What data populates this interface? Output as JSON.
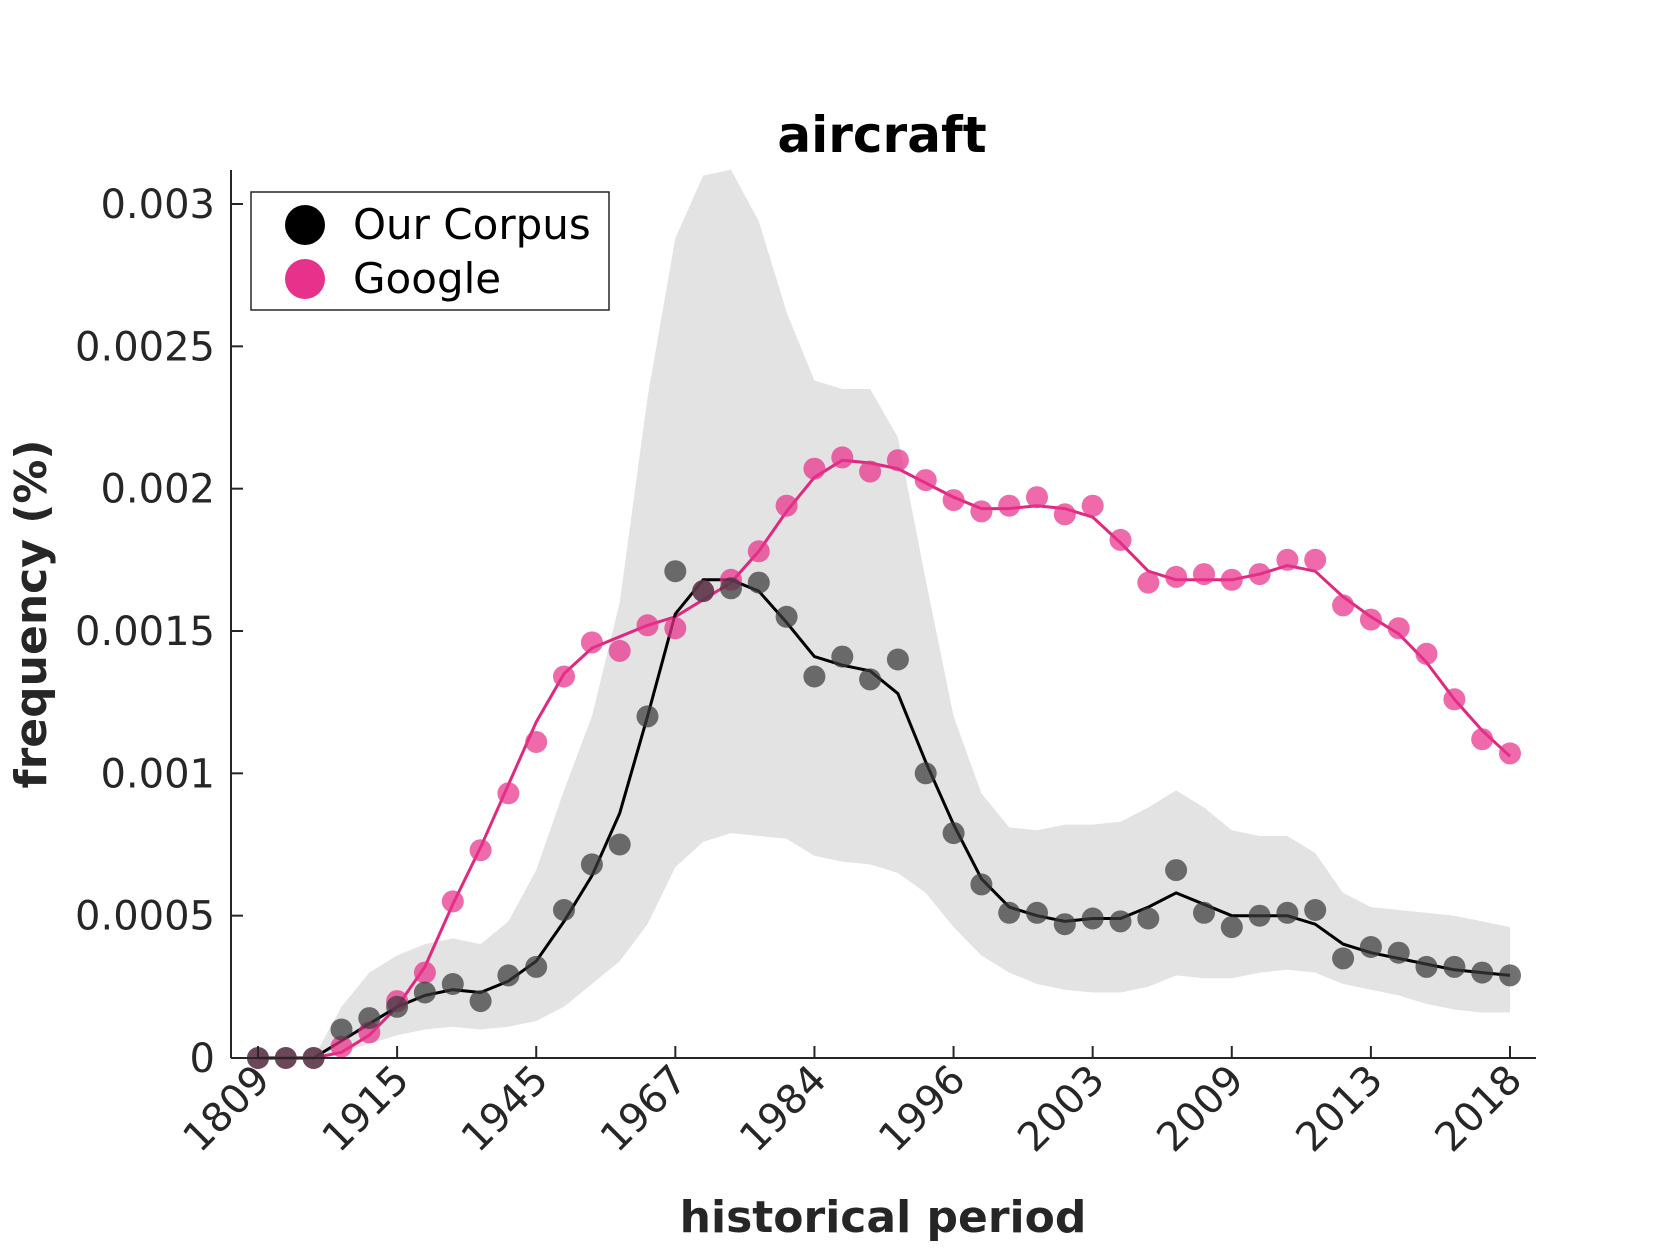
{
  "chart_data": {
    "type": "line",
    "title": "aircraft",
    "xlabel": "historical period",
    "ylabel": "frequency (%)",
    "ylim": [
      0,
      0.0031
    ],
    "yticks": [
      "0",
      "0.0005",
      "0.001",
      "0.0015",
      "0.002",
      "0.0025",
      "0.003"
    ],
    "xticks": [
      "1809",
      "1915",
      "1945",
      "1967",
      "1984",
      "1996",
      "2003",
      "2009",
      "2013",
      "2018"
    ],
    "x": [
      1,
      2,
      3,
      4,
      5,
      6,
      7,
      8,
      9,
      10,
      11,
      12,
      13,
      14,
      15,
      16,
      17,
      18,
      19,
      20,
      21,
      22,
      23,
      24,
      25,
      26,
      27,
      28,
      29,
      30,
      31,
      32,
      33,
      34,
      35,
      36,
      37,
      38,
      39,
      40,
      41,
      42,
      43,
      44,
      45,
      46
    ],
    "legend_position": "top-left",
    "grid": false,
    "series": [
      {
        "name": "Our Corpus",
        "color": "#3a3a3a",
        "line_color": "#000000",
        "points": [
          0,
          0,
          0,
          0.0001,
          0.00014,
          0.00018,
          0.00023,
          0.00026,
          0.0002,
          0.00029,
          0.00032,
          0.00052,
          0.00068,
          0.00075,
          0.0012,
          0.00171,
          0.00164,
          0.00165,
          0.00167,
          0.00155,
          0.00134,
          0.00141,
          0.00133,
          0.0014,
          0.001,
          0.00079,
          0.00061,
          0.00051,
          0.00051,
          0.00047,
          0.00049,
          0.00048,
          0.00049,
          0.00066,
          0.00051,
          0.00046,
          0.0005,
          0.00051,
          0.00052,
          0.00035,
          0.00039,
          0.00037,
          0.00032,
          0.00032,
          0.0003,
          0.00029
        ],
        "smoothed": [
          0,
          0,
          0,
          6e-05,
          0.00012,
          0.00018,
          0.00022,
          0.00024,
          0.00023,
          0.00027,
          0.00034,
          0.00048,
          0.00064,
          0.00086,
          0.0012,
          0.00156,
          0.00168,
          0.00168,
          0.00164,
          0.00153,
          0.00141,
          0.00138,
          0.00136,
          0.00128,
          0.00104,
          0.00082,
          0.00063,
          0.00053,
          0.0005,
          0.00048,
          0.00049,
          0.00049,
          0.00053,
          0.00058,
          0.00054,
          0.0005,
          0.0005,
          0.0005,
          0.00047,
          0.0004,
          0.00037,
          0.00035,
          0.00033,
          0.00031,
          0.0003,
          0.00029
        ]
      },
      {
        "name": "Google",
        "color": "#e8318a",
        "line_color": "#e0287f",
        "points": [
          0,
          0,
          0,
          4e-05,
          9e-05,
          0.0002,
          0.0003,
          0.00055,
          0.00073,
          0.00093,
          0.00111,
          0.00134,
          0.00146,
          0.00143,
          0.00152,
          0.00151,
          0.00164,
          0.00168,
          0.00178,
          0.00194,
          0.00207,
          0.00211,
          0.00206,
          0.0021,
          0.00203,
          0.00196,
          0.00192,
          0.00194,
          0.00197,
          0.00191,
          0.00194,
          0.00182,
          0.00167,
          0.00169,
          0.0017,
          0.00168,
          0.0017,
          0.00175,
          0.00175,
          0.00159,
          0.00154,
          0.00151,
          0.00142,
          0.00126,
          0.00112,
          0.00107
        ],
        "smoothed": [
          0,
          0,
          0,
          2e-05,
          8e-05,
          0.00018,
          0.00032,
          0.00054,
          0.00074,
          0.00096,
          0.00118,
          0.00135,
          0.00144,
          0.00148,
          0.00152,
          0.00155,
          0.00161,
          0.00167,
          0.00178,
          0.00192,
          0.00204,
          0.0021,
          0.00209,
          0.00207,
          0.00202,
          0.00197,
          0.00193,
          0.00193,
          0.00194,
          0.00193,
          0.0019,
          0.00181,
          0.00171,
          0.00168,
          0.00168,
          0.00168,
          0.0017,
          0.00173,
          0.00171,
          0.00162,
          0.00155,
          0.00149,
          0.00139,
          0.00126,
          0.00115,
          0.00106
        ]
      }
    ],
    "band": {
      "color": "#e3e3e3",
      "upper": [
        0,
        0,
        0,
        0.00018,
        0.0003,
        0.00036,
        0.0004,
        0.00042,
        0.0004,
        0.00048,
        0.00066,
        0.00094,
        0.0012,
        0.0016,
        0.00232,
        0.00288,
        0.0031,
        0.00312,
        0.00294,
        0.00262,
        0.00238,
        0.00235,
        0.00235,
        0.00218,
        0.00168,
        0.0012,
        0.00093,
        0.00081,
        0.0008,
        0.00082,
        0.00082,
        0.00083,
        0.00088,
        0.00094,
        0.00088,
        0.0008,
        0.00078,
        0.00078,
        0.00072,
        0.00058,
        0.00053,
        0.00052,
        0.00051,
        0.0005,
        0.00048,
        0.00046
      ],
      "lower": [
        0,
        0,
        0,
        2e-05,
        5e-05,
        8e-05,
        0.0001,
        0.00011,
        0.0001,
        0.00011,
        0.00013,
        0.00018,
        0.00026,
        0.00034,
        0.00047,
        0.00067,
        0.00076,
        0.00079,
        0.00078,
        0.00077,
        0.00071,
        0.00069,
        0.00068,
        0.00065,
        0.00058,
        0.00046,
        0.00036,
        0.0003,
        0.00026,
        0.00024,
        0.00023,
        0.00023,
        0.00025,
        0.00029,
        0.00028,
        0.00028,
        0.0003,
        0.00031,
        0.0003,
        0.00026,
        0.00024,
        0.00022,
        0.00019,
        0.00017,
        0.00016,
        0.00016
      ]
    }
  }
}
